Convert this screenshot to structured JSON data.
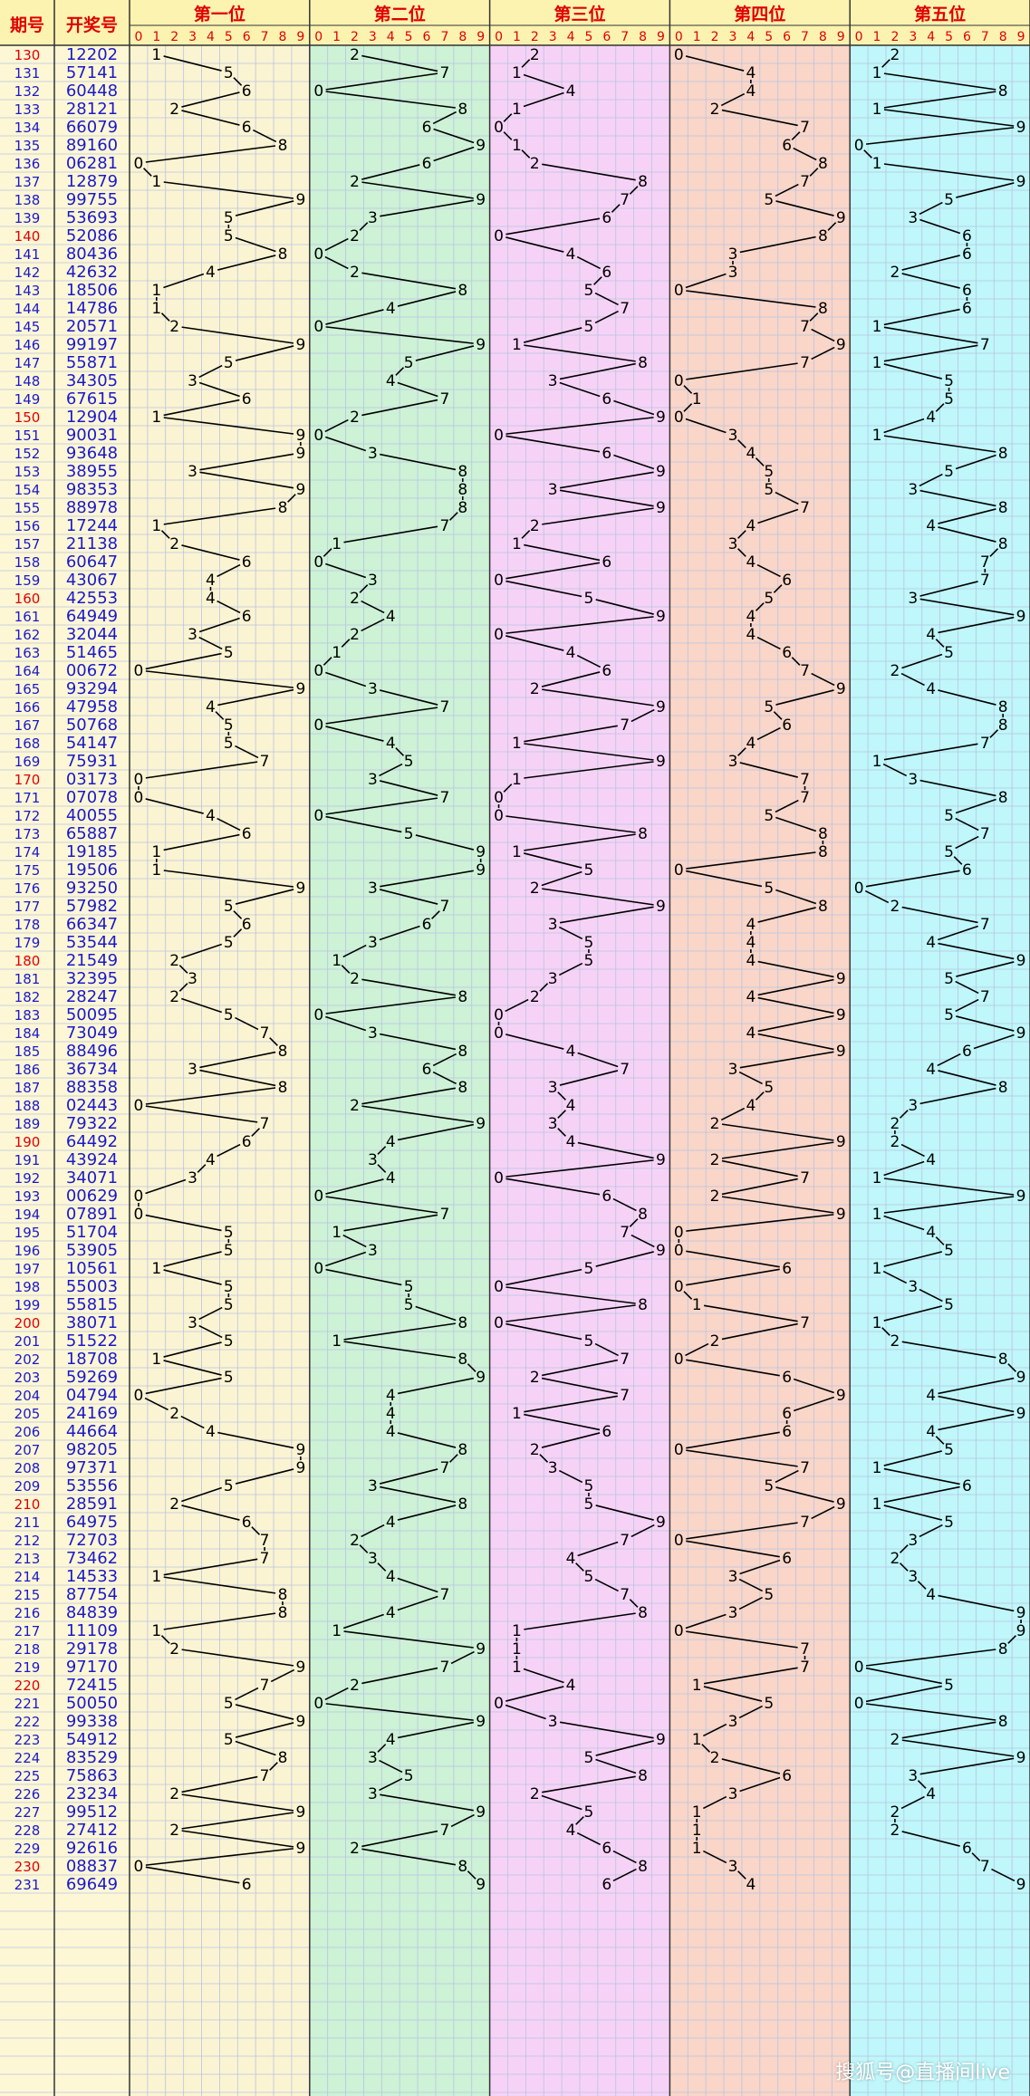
{
  "header": {
    "period_label": "期号",
    "draw_label": "开奖号",
    "position_titles": [
      "第一位",
      "第二位",
      "第三位",
      "第四位",
      "第五位"
    ],
    "digits": [
      "0",
      "1",
      "2",
      "3",
      "4",
      "5",
      "6",
      "7",
      "8",
      "9"
    ]
  },
  "watermark": "搜狐号@直播间live",
  "colors": {
    "pos1_bg": "#fbf4d2",
    "pos2_bg": "#cdf2d6",
    "pos3_bg": "#f6d3f6",
    "pos4_bg": "#f9d6c8",
    "pos5_bg": "#bff7fa",
    "left_bg": "#fdf7d6",
    "red": "#e00000",
    "blue": "#1a1acc",
    "line": "#000000",
    "grid": "#b9c3e0"
  },
  "chart_data": {
    "type": "line",
    "periods": [
      "130",
      "131",
      "132",
      "133",
      "134",
      "135",
      "136",
      "137",
      "138",
      "139",
      "140",
      "141",
      "142",
      "143",
      "144",
      "145",
      "146",
      "147",
      "148",
      "149",
      "150",
      "151",
      "152",
      "153",
      "154",
      "155",
      "156",
      "157",
      "158",
      "159",
      "160",
      "161",
      "162",
      "163",
      "164",
      "165",
      "166",
      "167",
      "168",
      "169",
      "170",
      "171",
      "172",
      "173",
      "174",
      "175",
      "176",
      "177",
      "178",
      "179",
      "180",
      "181",
      "182",
      "183",
      "184",
      "185",
      "186",
      "187",
      "188",
      "189",
      "190",
      "191",
      "192",
      "193",
      "194",
      "195",
      "196",
      "197",
      "198",
      "199",
      "200",
      "201",
      "202",
      "203",
      "204",
      "205",
      "206",
      "207",
      "208",
      "209",
      "210",
      "211",
      "212",
      "213",
      "214",
      "215",
      "216",
      "217",
      "218",
      "219",
      "220",
      "221",
      "222",
      "223",
      "224",
      "225",
      "226",
      "227",
      "228",
      "229",
      "230",
      "231"
    ],
    "draws": [
      "12202",
      "57141",
      "60448",
      "28121",
      "66079",
      "89160",
      "06281",
      "12879",
      "99755",
      "53693",
      "52086",
      "80436",
      "42632",
      "18506",
      "14786",
      "20571",
      "99197",
      "55871",
      "34305",
      "67615",
      "12904",
      "90031",
      "93648",
      "38955",
      "98353",
      "88978",
      "17244",
      "21138",
      "60647",
      "43067",
      "42553",
      "64949",
      "32044",
      "51465",
      "00672",
      "93294",
      "47958",
      "50768",
      "54147",
      "75931",
      "03173",
      "07078",
      "40055",
      "65887",
      "19185",
      "19506",
      "93250",
      "57982",
      "66347",
      "53544",
      "21549",
      "32395",
      "28247",
      "50095",
      "73049",
      "88496",
      "36734",
      "88358",
      "02443",
      "79322",
      "64492",
      "43924",
      "34071",
      "00629",
      "07891",
      "51704",
      "53905",
      "10561",
      "55003",
      "55815",
      "38071",
      "51522",
      "18708",
      "59269",
      "04794",
      "24169",
      "44664",
      "98205",
      "97371",
      "53556",
      "28591",
      "64975",
      "72703",
      "73462",
      "14533",
      "87754",
      "84839",
      "11109",
      "29178",
      "97170",
      "72415",
      "50050",
      "99338",
      "54912",
      "83529",
      "75863",
      "23234",
      "99512",
      "27412",
      "92616",
      "08837",
      "69649"
    ],
    "series": [
      {
        "name": "第一位"
      },
      {
        "name": "第二位"
      },
      {
        "name": "第三位"
      },
      {
        "name": "第四位"
      },
      {
        "name": "第五位"
      }
    ],
    "red_periods": [
      "130",
      "140",
      "150",
      "160",
      "170",
      "180",
      "190",
      "200",
      "210",
      "220",
      "230"
    ],
    "ylim": [
      0,
      9
    ]
  }
}
